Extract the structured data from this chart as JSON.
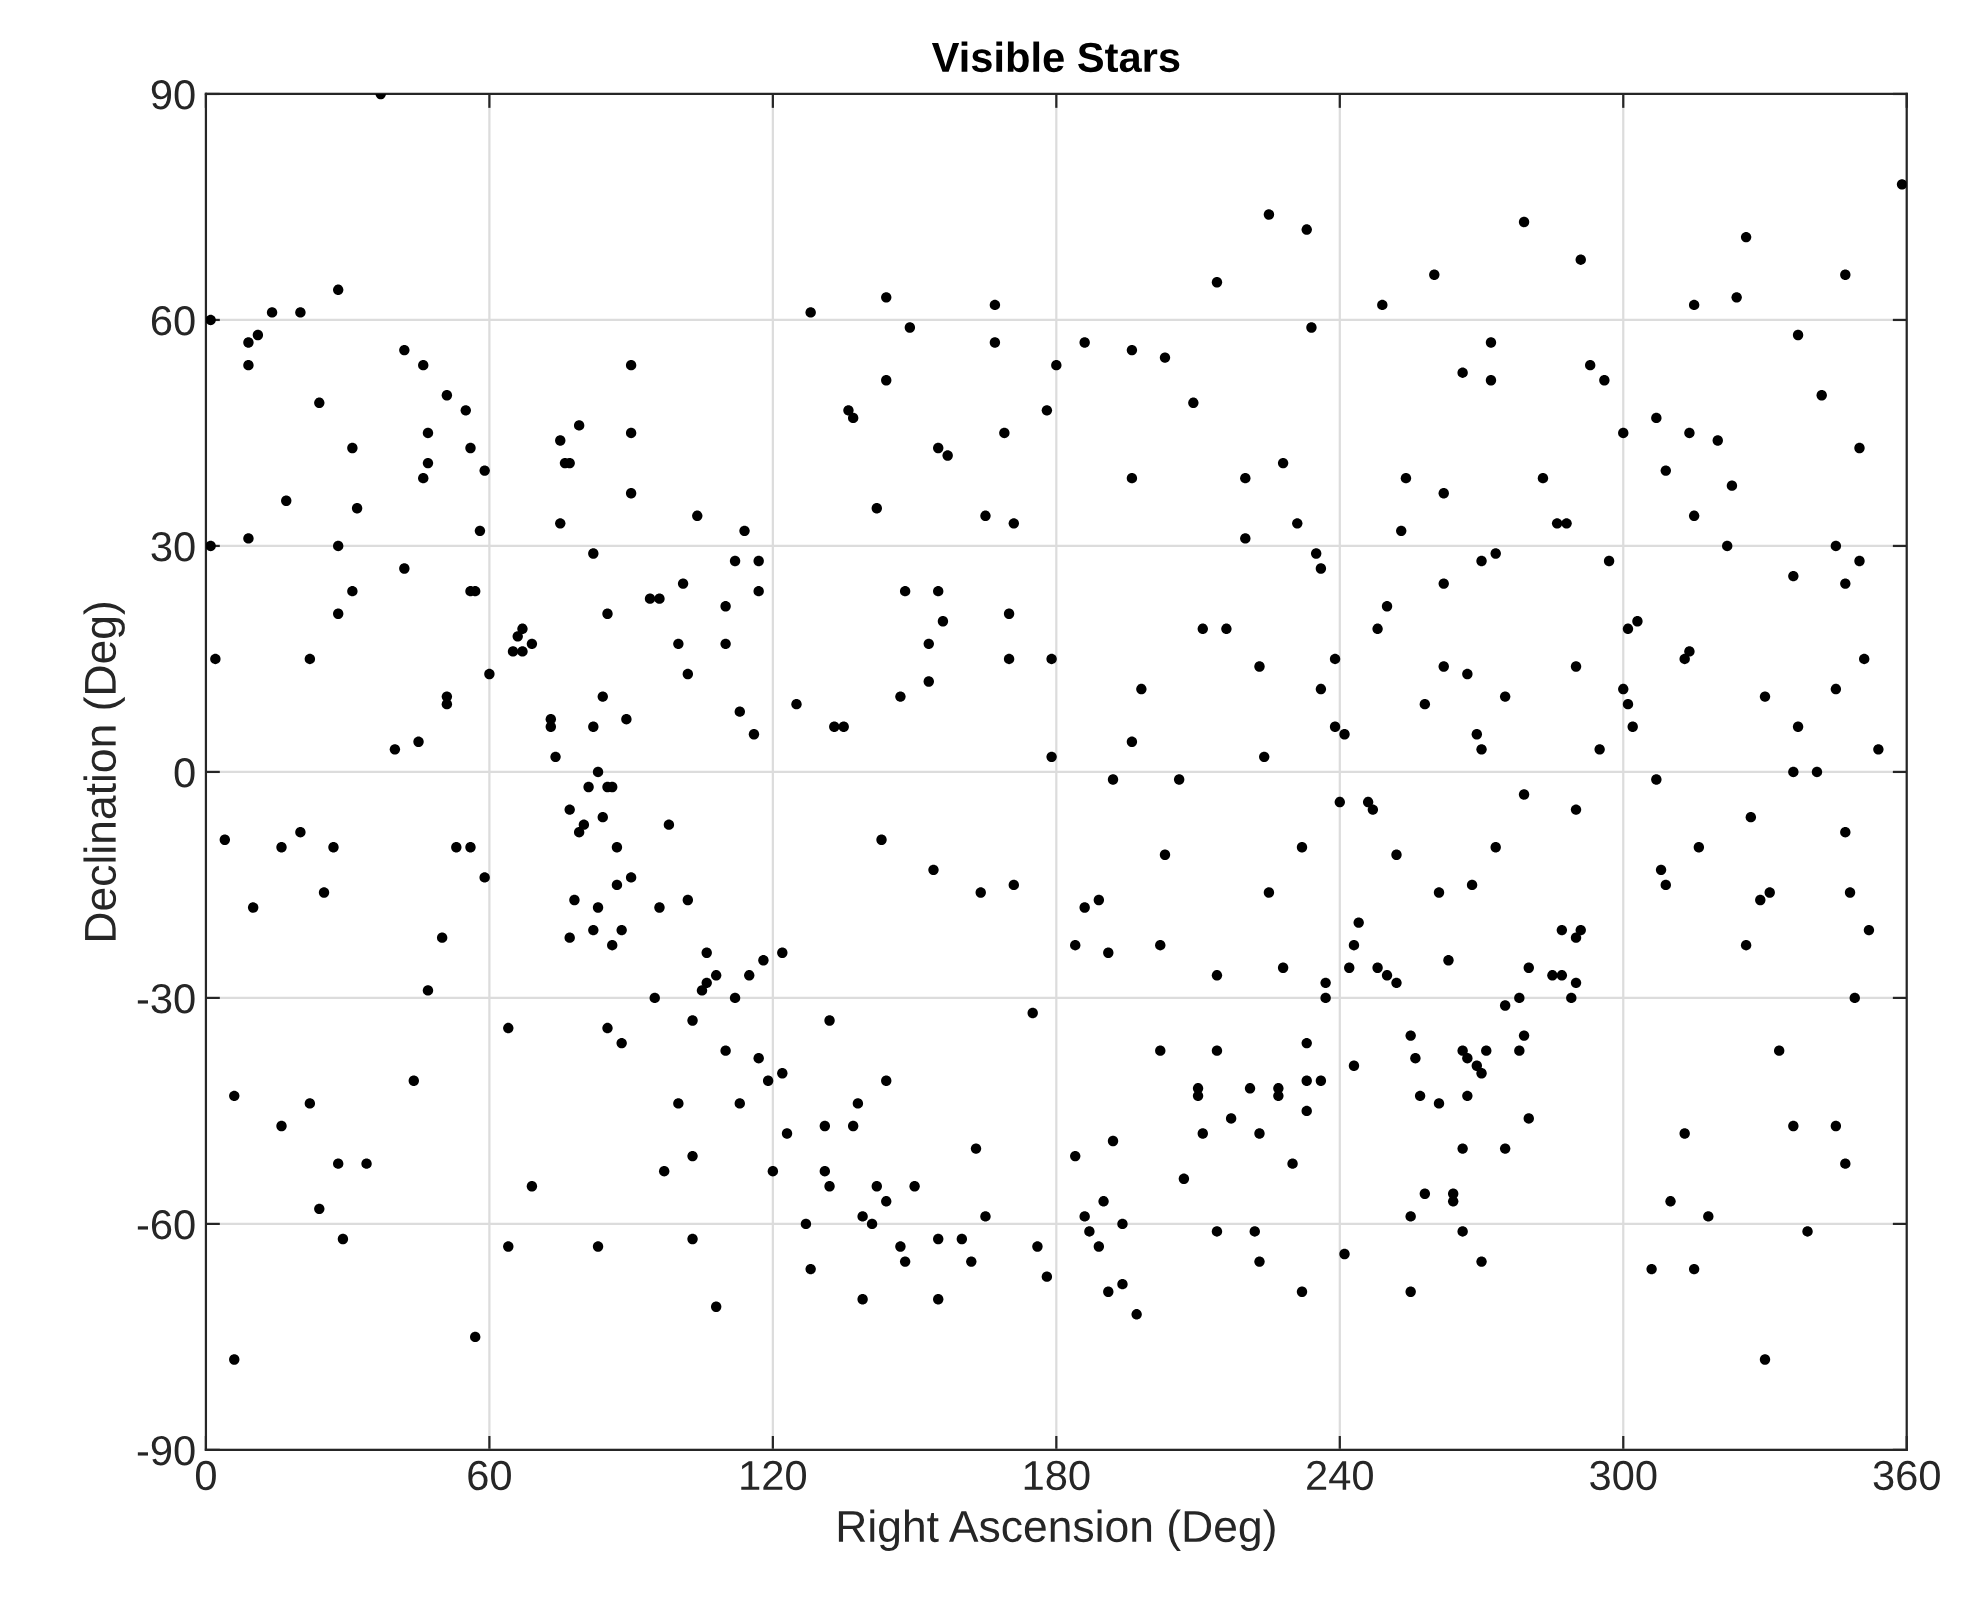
{
  "chart_data": {
    "type": "scatter",
    "title": "Visible Stars",
    "xlabel": "Right Ascension (Deg)",
    "ylabel": "Declination (Deg)",
    "xlim": [
      0,
      360
    ],
    "ylim": [
      -90,
      90
    ],
    "xticks": [
      0,
      60,
      120,
      180,
      240,
      300,
      360
    ],
    "yticks": [
      -90,
      -60,
      -30,
      0,
      30,
      60,
      90
    ],
    "grid": true,
    "marker": "circle",
    "series": [
      {
        "color": "#000000",
        "x": [
          37,
          28,
          14,
          20,
          1,
          11,
          9,
          9,
          42,
          46,
          51,
          55,
          24,
          47,
          31,
          56,
          47,
          46,
          59,
          79,
          75,
          76,
          77,
          90,
          90,
          90,
          17,
          32,
          75,
          104,
          114,
          58,
          9,
          1,
          28,
          82,
          112,
          117,
          117,
          42,
          31,
          56,
          57,
          101,
          94,
          96,
          85,
          110,
          28,
          67,
          66,
          69,
          65,
          67,
          100,
          110,
          2,
          22,
          102,
          60,
          84,
          51,
          51,
          89,
          113,
          116,
          73,
          73,
          82,
          40,
          45,
          74,
          83,
          85,
          81,
          86,
          77,
          80,
          79,
          84,
          98,
          87,
          4,
          16,
          20,
          27,
          25,
          10,
          53,
          56,
          59,
          50,
          47,
          87,
          90,
          78,
          83,
          96,
          102,
          82,
          88,
          86,
          77,
          106,
          108,
          106,
          105,
          112,
          115,
          118,
          122,
          95,
          103,
          64,
          85,
          88,
          110,
          117,
          119,
          122,
          100,
          113,
          6,
          22,
          16,
          44,
          28,
          34,
          123,
          97,
          103,
          120,
          69,
          24,
          29,
          64,
          83,
          103,
          108,
          57,
          6,
          225,
          233,
          214,
          144,
          167,
          128,
          234,
          149,
          186,
          196,
          203,
          167,
          180,
          209,
          144,
          178,
          136,
          137,
          169,
          155,
          157,
          196,
          220,
          228,
          142,
          165,
          171,
          231,
          220,
          235,
          236,
          148,
          155,
          156,
          170,
          153,
          170,
          179,
          153,
          147,
          125,
          133,
          135,
          211,
          216,
          223,
          198,
          239,
          236,
          239,
          241,
          196,
          224,
          179,
          192,
          206,
          240,
          143,
          154,
          164,
          171,
          203,
          232,
          186,
          189,
          184,
          191,
          202,
          225,
          214,
          228,
          237,
          237,
          132,
          175,
          144,
          138,
          131,
          137,
          131,
          132,
          142,
          144,
          150,
          163,
          165,
          127,
          139,
          141,
          147,
          148,
          155,
          160,
          162,
          128,
          139,
          155,
          176,
          178,
          184,
          192,
          190,
          186,
          187,
          194,
          189,
          191,
          194,
          197,
          210,
          210,
          211,
          202,
          214,
          217,
          221,
          227,
          227,
          223,
          233,
          233,
          236,
          233,
          230,
          207,
          214,
          222,
          223,
          232,
          241,
          359,
          279,
          326,
          347,
          291,
          260,
          249,
          315,
          324,
          337,
          272,
          266,
          272,
          293,
          296,
          342,
          300,
          307,
          314,
          320,
          350,
          309,
          323,
          254,
          262,
          283,
          315,
          286,
          288,
          253,
          322,
          345,
          273,
          270,
          297,
          350,
          336,
          347,
          262,
          250,
          248,
          303,
          301,
          314,
          313,
          351,
          262,
          267,
          290,
          258,
          275,
          300,
          301,
          302,
          269,
          270,
          295,
          330,
          337,
          345,
          354,
          336,
          341,
          307,
          246,
          247,
          279,
          290,
          252,
          273,
          261,
          268,
          244,
          243,
          242,
          248,
          250,
          252,
          263,
          280,
          287,
          290,
          291,
          285,
          287,
          290,
          289,
          278,
          275,
          255,
          279,
          278,
          256,
          266,
          267,
          271,
          269,
          270,
          257,
          261,
          267,
          243,
          280,
          266,
          275,
          258,
          264,
          264,
          255,
          266,
          270,
          255,
          313,
          336,
          345,
          347,
          310,
          318,
          339,
          306,
          315,
          330,
          333,
          308,
          309,
          316,
          327,
          329,
          331,
          326,
          347,
          348,
          352,
          349
        ],
        "values": [
          90,
          64,
          61,
          61,
          60,
          58,
          57,
          54,
          56,
          54,
          50,
          48,
          49,
          45,
          43,
          43,
          41,
          39,
          40,
          46,
          44,
          41,
          41,
          54,
          45,
          37,
          36,
          35,
          33,
          34,
          32,
          32,
          31,
          30,
          30,
          29,
          28,
          28,
          24,
          27,
          24,
          24,
          24,
          25,
          23,
          23,
          21,
          22,
          21,
          19,
          18,
          17,
          16,
          16,
          17,
          17,
          15,
          15,
          13,
          13,
          10,
          10,
          9,
          7,
          8,
          5,
          7,
          6,
          6,
          3,
          4,
          2,
          0,
          -2,
          -2,
          -2,
          -5,
          -7,
          -8,
          -6,
          -7,
          -10,
          -9,
          -10,
          -8,
          -10,
          -16,
          -18,
          -10,
          -10,
          -14,
          -22,
          -29,
          -15,
          -14,
          -17,
          -18,
          -18,
          -17,
          -21,
          -21,
          -23,
          -22,
          -24,
          -27,
          -28,
          -29,
          -30,
          -27,
          -25,
          -24,
          -30,
          -33,
          -34,
          -34,
          -36,
          -37,
          -38,
          -41,
          -40,
          -44,
          -44,
          -43,
          -44,
          -47,
          -41,
          -52,
          -52,
          -48,
          -53,
          -51,
          -53,
          -55,
          -58,
          -62,
          -63,
          -63,
          -62,
          -71,
          -75,
          -78,
          74,
          72,
          65,
          63,
          62,
          61,
          59,
          59,
          57,
          56,
          55,
          57,
          54,
          49,
          52,
          48,
          48,
          47,
          45,
          43,
          42,
          39,
          39,
          41,
          35,
          34,
          33,
          33,
          31,
          29,
          27,
          24,
          24,
          20,
          21,
          17,
          15,
          15,
          12,
          10,
          9,
          6,
          6,
          19,
          19,
          14,
          11,
          15,
          11,
          6,
          5,
          4,
          2,
          2,
          -1,
          -1,
          -4,
          -9,
          -13,
          -16,
          -15,
          -11,
          -10,
          -18,
          -17,
          -23,
          -24,
          -23,
          -16,
          -27,
          -26,
          -28,
          -30,
          -33,
          -32,
          -41,
          -44,
          -47,
          -47,
          -53,
          -55,
          -55,
          -57,
          -55,
          -50,
          -59,
          -60,
          -59,
          -60,
          -63,
          -65,
          -62,
          -62,
          -65,
          -66,
          -70,
          -70,
          -63,
          -67,
          -51,
          -49,
          -57,
          -59,
          -61,
          -60,
          -63,
          -69,
          -68,
          -72,
          -42,
          -43,
          -48,
          -37,
          -37,
          -46,
          -42,
          -42,
          -43,
          -48,
          -36,
          -41,
          -41,
          -45,
          -52,
          -54,
          -61,
          -61,
          -65,
          -69,
          -64,
          78,
          73,
          71,
          66,
          68,
          66,
          62,
          62,
          63,
          58,
          57,
          53,
          52,
          54,
          52,
          50,
          45,
          47,
          45,
          44,
          43,
          40,
          38,
          39,
          37,
          39,
          34,
          33,
          33,
          32,
          30,
          30,
          29,
          28,
          28,
          28,
          26,
          25,
          25,
          22,
          19,
          20,
          19,
          16,
          15,
          15,
          14,
          13,
          14,
          9,
          10,
          11,
          9,
          6,
          5,
          3,
          3,
          10,
          6,
          11,
          3,
          0,
          0,
          -1,
          -4,
          -5,
          -3,
          -5,
          -11,
          -10,
          -16,
          -15,
          -20,
          -23,
          -26,
          -26,
          -27,
          -28,
          -25,
          -26,
          -21,
          -22,
          -21,
          -27,
          -27,
          -28,
          -30,
          -30,
          -31,
          -35,
          -35,
          -37,
          -38,
          -37,
          -38,
          -37,
          -39,
          -40,
          -43,
          -44,
          -43,
          -39,
          -46,
          -50,
          -50,
          -56,
          -56,
          -57,
          -59,
          -61,
          -65,
          -69,
          -48,
          -47,
          -47,
          -52,
          -57,
          -59,
          -61,
          -66,
          -66,
          -78,
          -37,
          -13,
          -15,
          -10,
          -6,
          -17,
          -16,
          -23,
          -8,
          -16,
          -21,
          -30
        ]
      }
    ]
  }
}
